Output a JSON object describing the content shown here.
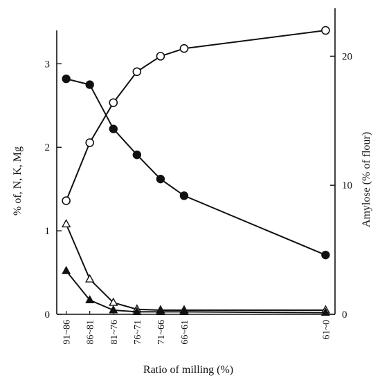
{
  "chart_data": {
    "type": "line",
    "title": "",
    "xlabel": "Ratio of milling (%)",
    "ylabel_left": "% of, N, K, Mg",
    "ylabel_right": "Amylose (% of flour)",
    "categories": [
      "91~86",
      "86~81",
      "81~76",
      "76~71",
      "71~66",
      "66~61",
      "61~0"
    ],
    "x_positions": [
      0,
      1,
      2,
      3,
      4,
      5,
      11
    ],
    "xlim": [
      -0.4,
      11.4
    ],
    "ylim_left": [
      0,
      3.4
    ],
    "ylim_right": [
      0,
      22
    ],
    "yticks_left": [
      0,
      1,
      2,
      3
    ],
    "yticks_right": [
      0,
      10,
      20
    ],
    "grid": false,
    "series": [
      {
        "marker": "filled-circle",
        "axis": "left",
        "values": [
          2.82,
          2.75,
          2.22,
          1.91,
          1.62,
          1.42,
          0.71
        ]
      },
      {
        "marker": "open-circle",
        "axis": "right",
        "values": [
          8.8,
          13.3,
          16.4,
          18.8,
          20.0,
          20.6,
          22.0
        ]
      },
      {
        "marker": "open-triangle",
        "axis": "left",
        "values": [
          1.08,
          0.42,
          0.14,
          0.06,
          0.05,
          0.05,
          0.05
        ]
      },
      {
        "marker": "filled-triangle",
        "axis": "left",
        "values": [
          0.52,
          0.17,
          0.05,
          0.03,
          0.03,
          0.03,
          0.02
        ]
      }
    ]
  }
}
